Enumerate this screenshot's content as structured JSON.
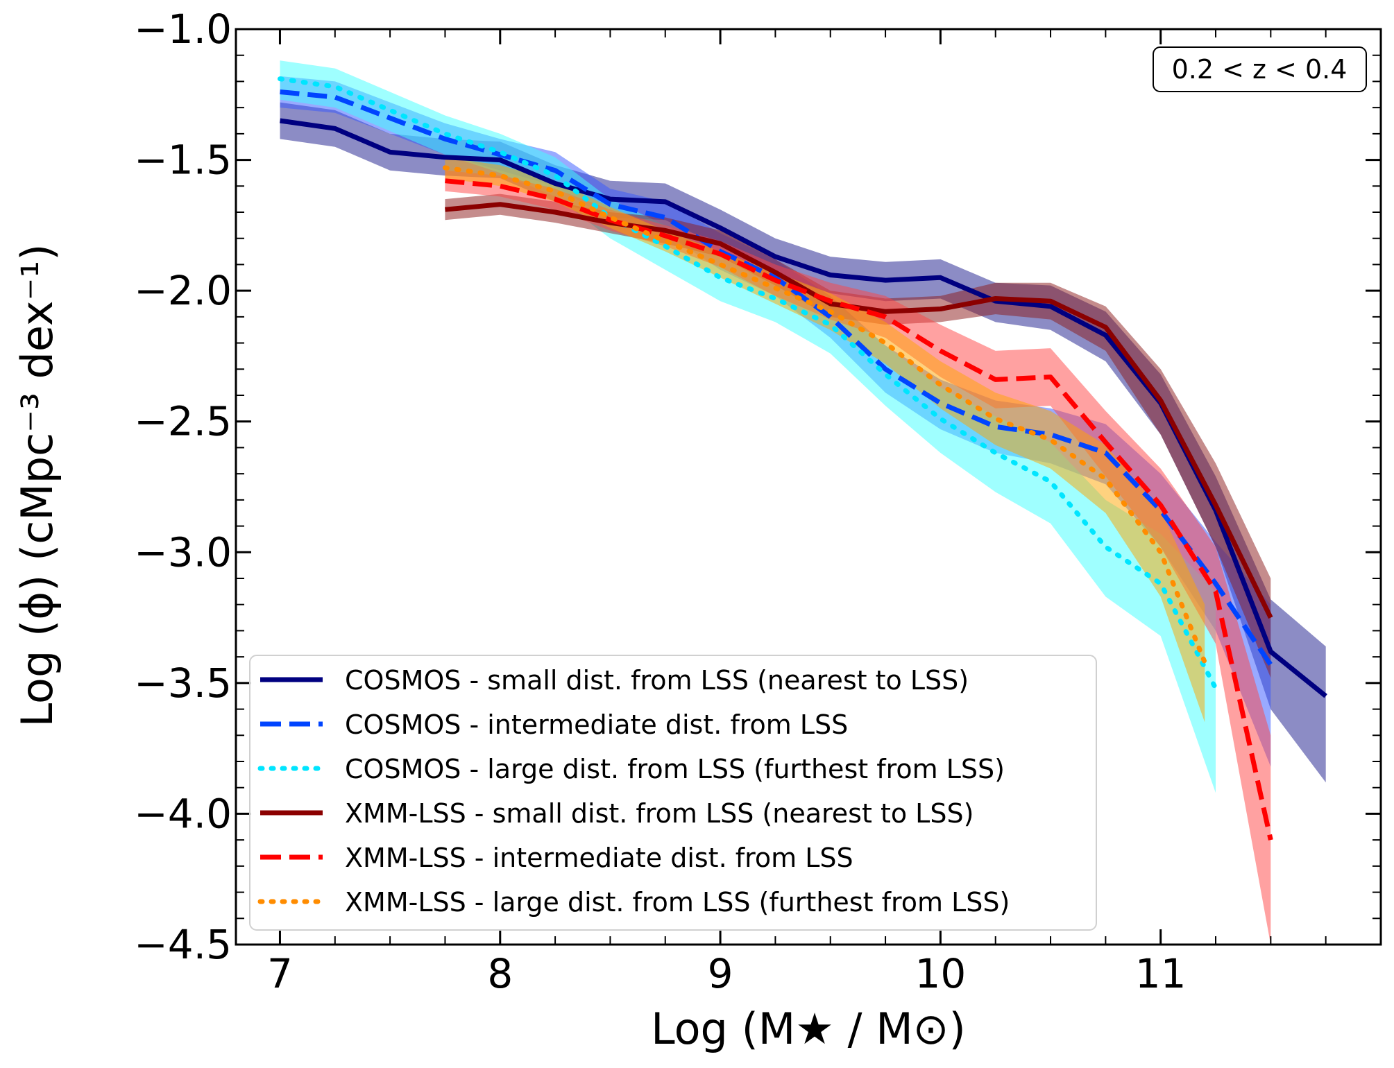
{
  "chart_data": {
    "type": "line",
    "title": "",
    "xlabel": "Log (M★ / M⊙)",
    "ylabel": "Log (ϕ)  (cMpc⁻³ dex⁻¹)",
    "xlim": [
      6.8,
      12.0
    ],
    "ylim": [
      -4.5,
      -1.0
    ],
    "x_ticks": [
      7,
      8,
      9,
      10,
      11
    ],
    "x_tick_labels": [
      "7",
      "8",
      "9",
      "10",
      "11"
    ],
    "y_ticks": [
      -1.0,
      -1.5,
      -2.0,
      -2.5,
      -3.0,
      -3.5,
      -4.0,
      -4.5
    ],
    "y_tick_labels": [
      "−1.0",
      "−1.5",
      "−2.0",
      "−2.5",
      "−3.0",
      "−3.5",
      "−4.0",
      "−4.5"
    ],
    "annotation": "0.2 < z < 0.4",
    "legend_position": "lower-left",
    "grid": false,
    "series": [
      {
        "name": "COSMOS - small dist. from LSS (nearest to LSS)",
        "color": "#000080",
        "band_color": "#1a1a8c",
        "dash": "solid",
        "x": [
          7.0,
          7.25,
          7.5,
          7.75,
          8.0,
          8.25,
          8.5,
          8.75,
          9.0,
          9.25,
          9.5,
          9.75,
          10.0,
          10.25,
          10.5,
          10.75,
          11.0,
          11.25,
          11.5,
          11.75
        ],
        "values": [
          -1.35,
          -1.38,
          -1.47,
          -1.49,
          -1.5,
          -1.59,
          -1.65,
          -1.66,
          -1.76,
          -1.87,
          -1.94,
          -1.96,
          -1.95,
          -2.04,
          -2.06,
          -2.17,
          -2.43,
          -2.84,
          -3.38,
          -3.55
        ],
        "lower": [
          -1.42,
          -1.45,
          -1.54,
          -1.56,
          -1.57,
          -1.66,
          -1.72,
          -1.73,
          -1.83,
          -1.94,
          -2.01,
          -2.04,
          -2.03,
          -2.12,
          -2.15,
          -2.27,
          -2.55,
          -2.98,
          -3.6,
          -3.88
        ],
        "upper": [
          -1.28,
          -1.31,
          -1.4,
          -1.42,
          -1.43,
          -1.52,
          -1.58,
          -1.59,
          -1.69,
          -1.8,
          -1.87,
          -1.89,
          -1.88,
          -1.97,
          -1.98,
          -2.08,
          -2.32,
          -2.71,
          -3.18,
          -3.36
        ]
      },
      {
        "name": "COSMOS - intermediate dist. from LSS",
        "color": "#0044ff",
        "band_color": "#3355ff",
        "dash": "dashed",
        "x": [
          7.0,
          7.25,
          7.5,
          7.75,
          8.0,
          8.25,
          8.5,
          8.75,
          9.0,
          9.25,
          9.5,
          9.75,
          10.0,
          10.25,
          10.5,
          10.75,
          11.0,
          11.25,
          11.5
        ],
        "values": [
          -1.24,
          -1.26,
          -1.34,
          -1.42,
          -1.48,
          -1.54,
          -1.67,
          -1.72,
          -1.85,
          -1.95,
          -2.1,
          -2.3,
          -2.43,
          -2.52,
          -2.55,
          -2.62,
          -2.84,
          -3.12,
          -3.43
        ],
        "lower": [
          -1.3,
          -1.32,
          -1.4,
          -1.48,
          -1.54,
          -1.6,
          -1.73,
          -1.78,
          -1.92,
          -2.02,
          -2.18,
          -2.39,
          -2.53,
          -2.62,
          -2.66,
          -2.74,
          -2.98,
          -3.3,
          -3.82
        ],
        "upper": [
          -1.18,
          -1.2,
          -1.28,
          -1.36,
          -1.42,
          -1.47,
          -1.61,
          -1.66,
          -1.78,
          -1.88,
          -2.02,
          -2.21,
          -2.34,
          -2.42,
          -2.45,
          -2.51,
          -2.7,
          -2.96,
          -3.2
        ]
      },
      {
        "name": "COSMOS - large dist. from LSS (furthest from LSS)",
        "color": "#00e5ff",
        "band_color": "#40ffff",
        "dash": "dotted",
        "x": [
          7.0,
          7.25,
          7.5,
          7.75,
          8.0,
          8.25,
          8.5,
          8.75,
          9.0,
          9.25,
          9.5,
          9.75,
          10.0,
          10.25,
          10.5,
          10.75,
          11.0,
          11.25
        ],
        "values": [
          -1.19,
          -1.22,
          -1.31,
          -1.4,
          -1.47,
          -1.56,
          -1.72,
          -1.83,
          -1.95,
          -2.03,
          -2.13,
          -2.32,
          -2.49,
          -2.62,
          -2.73,
          -2.98,
          -3.12,
          -3.52
        ],
        "lower": [
          -1.27,
          -1.3,
          -1.39,
          -1.48,
          -1.55,
          -1.64,
          -1.8,
          -1.92,
          -2.04,
          -2.12,
          -2.24,
          -2.44,
          -2.62,
          -2.77,
          -2.89,
          -3.17,
          -3.32,
          -3.92
        ],
        "upper": [
          -1.12,
          -1.15,
          -1.24,
          -1.33,
          -1.4,
          -1.49,
          -1.65,
          -1.75,
          -1.87,
          -1.95,
          -2.03,
          -2.21,
          -2.37,
          -2.48,
          -2.58,
          -2.8,
          -2.93,
          -3.15
        ]
      },
      {
        "name": "XMM-LSS - small dist. from LSS (nearest to LSS)",
        "color": "#8b0000",
        "band_color": "#8b1a1a",
        "dash": "solid",
        "x": [
          7.75,
          8.0,
          8.25,
          8.5,
          8.75,
          9.0,
          9.25,
          9.5,
          9.75,
          10.0,
          10.25,
          10.5,
          10.75,
          11.0,
          11.25,
          11.5
        ],
        "values": [
          -1.69,
          -1.67,
          -1.7,
          -1.74,
          -1.77,
          -1.82,
          -1.93,
          -2.05,
          -2.08,
          -2.07,
          -2.03,
          -2.04,
          -2.14,
          -2.42,
          -2.82,
          -3.25
        ],
        "lower": [
          -1.73,
          -1.71,
          -1.74,
          -1.78,
          -1.82,
          -1.87,
          -1.98,
          -2.1,
          -2.13,
          -2.12,
          -2.09,
          -2.11,
          -2.23,
          -2.55,
          -2.98,
          -3.48
        ],
        "upper": [
          -1.65,
          -1.63,
          -1.66,
          -1.7,
          -1.72,
          -1.77,
          -1.88,
          -2.0,
          -2.03,
          -2.02,
          -1.97,
          -1.97,
          -2.06,
          -2.3,
          -2.66,
          -3.1
        ]
      },
      {
        "name": "XMM-LSS - intermediate dist. from LSS",
        "color": "#ff0000",
        "band_color": "#ff4444",
        "dash": "dashed",
        "x": [
          7.75,
          8.0,
          8.25,
          8.5,
          8.75,
          9.0,
          9.25,
          9.5,
          9.75,
          10.0,
          10.25,
          10.5,
          10.75,
          11.0,
          11.25,
          11.5
        ],
        "values": [
          -1.58,
          -1.6,
          -1.65,
          -1.73,
          -1.79,
          -1.86,
          -1.96,
          -2.04,
          -2.1,
          -2.23,
          -2.34,
          -2.33,
          -2.58,
          -2.82,
          -3.15,
          -4.1
        ],
        "lower": [
          -1.62,
          -1.64,
          -1.69,
          -1.77,
          -1.83,
          -1.91,
          -2.02,
          -2.11,
          -2.18,
          -2.33,
          -2.45,
          -2.44,
          -2.71,
          -2.98,
          -3.35,
          -4.5
        ],
        "upper": [
          -1.54,
          -1.56,
          -1.61,
          -1.69,
          -1.75,
          -1.81,
          -1.9,
          -1.97,
          -2.02,
          -2.13,
          -2.23,
          -2.22,
          -2.46,
          -2.68,
          -2.98,
          -3.7
        ]
      },
      {
        "name": "XMM-LSS - large dist. from LSS (furthest from LSS)",
        "color": "#ff8c00",
        "band_color": "#ffa500",
        "dash": "dotted",
        "x": [
          7.75,
          8.0,
          8.25,
          8.5,
          8.75,
          9.0,
          9.25,
          9.5,
          9.75,
          10.0,
          10.25,
          10.5,
          10.75,
          11.0,
          11.2
        ],
        "values": [
          -1.53,
          -1.56,
          -1.62,
          -1.72,
          -1.81,
          -1.9,
          -1.99,
          -2.08,
          -2.2,
          -2.36,
          -2.49,
          -2.57,
          -2.72,
          -3.0,
          -3.42
        ],
        "lower": [
          -1.57,
          -1.6,
          -1.66,
          -1.76,
          -1.85,
          -1.95,
          -2.05,
          -2.15,
          -2.28,
          -2.45,
          -2.59,
          -2.68,
          -2.85,
          -3.17,
          -3.65
        ],
        "upper": [
          -1.49,
          -1.52,
          -1.58,
          -1.68,
          -1.77,
          -1.85,
          -1.93,
          -2.01,
          -2.12,
          -2.27,
          -2.39,
          -2.46,
          -2.59,
          -2.84,
          -3.2
        ]
      }
    ]
  }
}
